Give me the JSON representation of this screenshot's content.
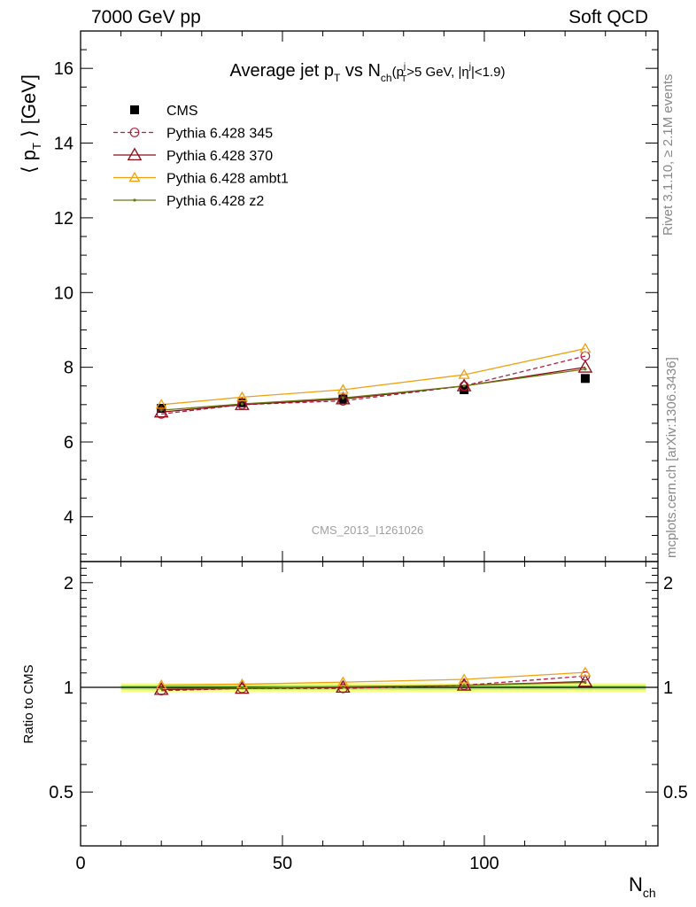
{
  "header": {
    "left": "7000 GeV pp",
    "right": "Soft QCD"
  },
  "side_labels": {
    "rivet": "Rivet 3.1.10, ≥ 2.1M events",
    "mcplots": "mcplots.cern.ch [arXiv:1306.3436]"
  },
  "watermark": "CMS_2013_I1261026",
  "chart_data": {
    "type": "line",
    "title": "Average jet pT vs Nch (pTj>5 GeV, |ηj|<1.9)",
    "title_parts": {
      "main_a": "Average jet p",
      "main_a_sub": "T",
      "main_b": " vs N",
      "main_b_sub": "ch",
      "paren_a": "(p",
      "paren_a_sup": "j",
      "paren_a_sub": "T",
      "paren_b": ">5 GeV, |η",
      "paren_b_sup": "j",
      "paren_c": "|<1.9)"
    },
    "ylabel": "⟨ pT ⟩ [GeV]",
    "ylabel_parts": {
      "open": "⟨ p",
      "sub": "T",
      "close": " ⟩ [GeV]"
    },
    "xlabel": "Nch",
    "xlabel_parts": {
      "main": "N",
      "sub": "ch"
    },
    "ratio_ylabel": "Ratio to CMS",
    "xlim": [
      0,
      143
    ],
    "ylim": [
      2.8,
      17
    ],
    "ratio_ylim": [
      0.35,
      2.3
    ],
    "x_ticks": [
      0,
      50,
      100
    ],
    "y_ticks": [
      4,
      6,
      8,
      10,
      12,
      14,
      16
    ],
    "ratio_ticks": [
      0.5,
      1,
      2
    ],
    "x": [
      20,
      40,
      65,
      95,
      125
    ],
    "data": {
      "name": "CMS",
      "values": [
        6.9,
        7.05,
        7.15,
        7.4,
        7.7
      ],
      "band_xlim": [
        10,
        140
      ]
    },
    "series": [
      {
        "name": "Pythia 6.428 345",
        "color": "#b22040",
        "dash": "5,3",
        "marker": "circle",
        "values": [
          6.75,
          7.0,
          7.1,
          7.5,
          8.3
        ]
      },
      {
        "name": "Pythia 6.428 370",
        "color": "#8b0a14",
        "dash": "",
        "marker": "triangle",
        "values": [
          6.8,
          7.0,
          7.15,
          7.5,
          8.0
        ]
      },
      {
        "name": "Pythia 6.428 ambt1",
        "color": "#f0a010",
        "dash": "",
        "marker": "triangle-small",
        "values": [
          7.0,
          7.2,
          7.4,
          7.8,
          8.5
        ]
      },
      {
        "name": "Pythia 6.428 z2",
        "color": "#6b7a10",
        "dash": "",
        "marker": "dot",
        "values": [
          6.85,
          7.02,
          7.18,
          7.5,
          7.95
        ]
      }
    ]
  }
}
